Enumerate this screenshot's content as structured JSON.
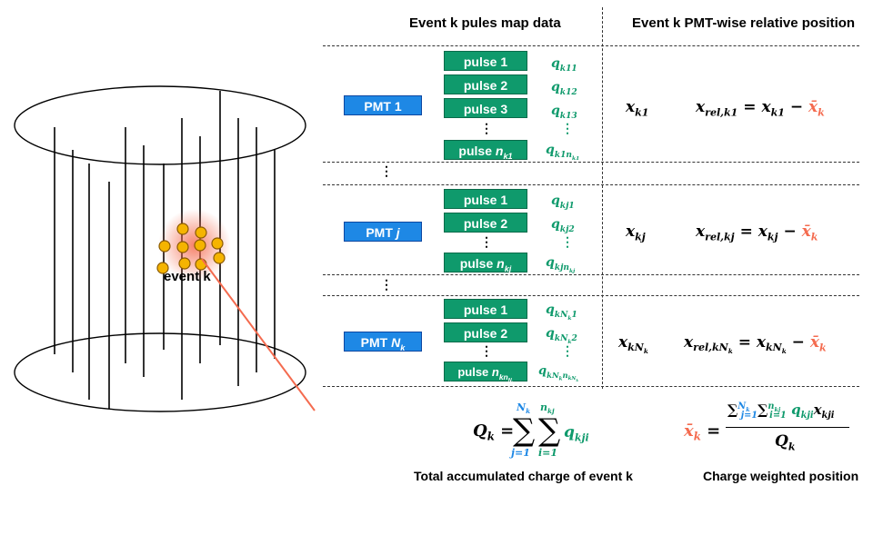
{
  "headers": {
    "pulse_map": "Event k pules map data",
    "relative_position": "Event k PMT-wise relative position"
  },
  "detector": {
    "event_label": "event k"
  },
  "pmts": [
    {
      "label": "PMT 1",
      "pulses": [
        "pulse 1",
        "pulse 2",
        "pulse 3",
        "pulse n_k1"
      ],
      "charges": [
        "q_k11",
        "q_k12",
        "q_k13",
        "q_k1n_k1"
      ],
      "position": "x_k1",
      "relative": "x_rel,k1 = x_k1 − x̄_k"
    },
    {
      "label": "PMT j",
      "pulses": [
        "pulse 1",
        "pulse 2",
        "pulse n_kj"
      ],
      "charges": [
        "q_kj1",
        "q_kj2",
        "q_kjn_kj"
      ],
      "position": "x_kj",
      "relative": "x_rel,kj = x_kj − x̄_k"
    },
    {
      "label": "PMT N_k",
      "pulses": [
        "pulse 1",
        "pulse 2",
        "pulse n_kn_Nk"
      ],
      "charges": [
        "q_kN_k1",
        "q_kN_k2",
        "q_kN_kn_kN_k"
      ],
      "position": "x_kN_k",
      "relative": "x_rel,kN_k = x_kN_k − x̄_k"
    }
  ],
  "ellipsis": "⋮",
  "formulas": {
    "total_charge": "Q_k = Σ_{j=1}^{N_k} Σ_{i=1}^{n_kj} q_kji",
    "weighted_position": "x̄_k = Σ_{j=1}^{N_k} Σ_{i=1}^{n_kj} q_kji x_kji / Q_k"
  },
  "captions": {
    "total_charge": "Total accumulated charge of event k",
    "weighted_position": "Charge weighted position"
  },
  "colors": {
    "pmt_blue": "#1e88e5",
    "pulse_green": "#0f9a6c",
    "accent_red": "#f46b4f",
    "pmt_dot": "#f5b400"
  }
}
